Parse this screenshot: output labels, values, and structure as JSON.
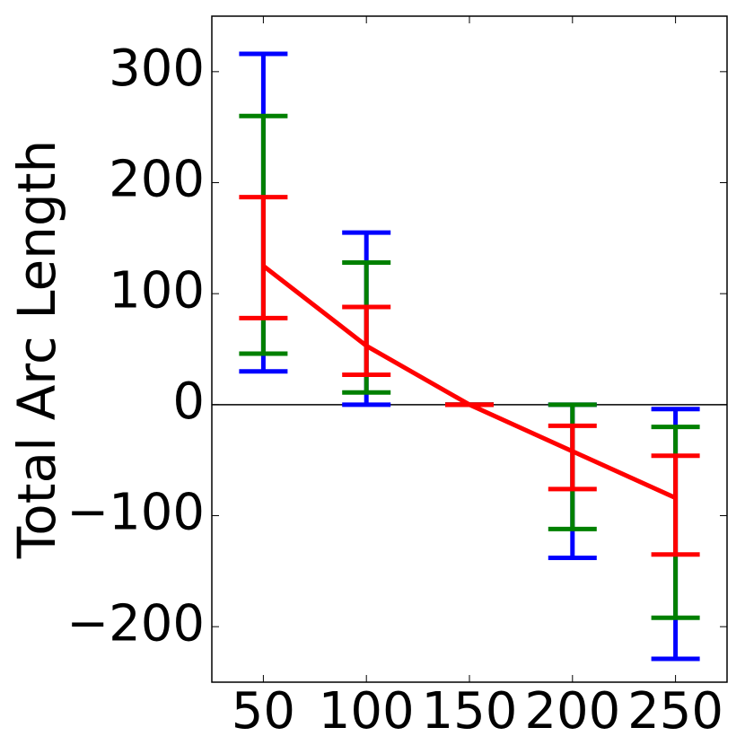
{
  "chart_data": {
    "type": "errorbar",
    "y_label": "Total Arc Length",
    "x": [
      50,
      100,
      150,
      200,
      250
    ],
    "values": [
      125,
      53,
      0,
      -42,
      -84
    ],
    "color": "#ff0000",
    "series": [
      {
        "color": "#0000ff",
        "low": [
          30,
          0,
          0,
          -138,
          -229
        ],
        "high": [
          316,
          155,
          0,
          0,
          -4
        ]
      },
      {
        "color": "#008000",
        "low": [
          46,
          11,
          0,
          -112,
          -192
        ],
        "high": [
          260,
          128,
          0,
          0,
          -20
        ]
      },
      {
        "color": "#ff0000",
        "low": [
          78,
          27,
          0,
          -76,
          -135
        ],
        "high": [
          187,
          88,
          0,
          -19,
          -46
        ]
      }
    ],
    "xlim": [
      25,
      275
    ],
    "ylim": [
      -250,
      350
    ],
    "xticks": [
      50,
      100,
      150,
      200,
      250
    ],
    "yticks": [
      {
        "value": -200,
        "label": "−200"
      },
      {
        "value": -100,
        "label": "−100"
      },
      0,
      100,
      200,
      300
    ],
    "zero_line": true
  }
}
